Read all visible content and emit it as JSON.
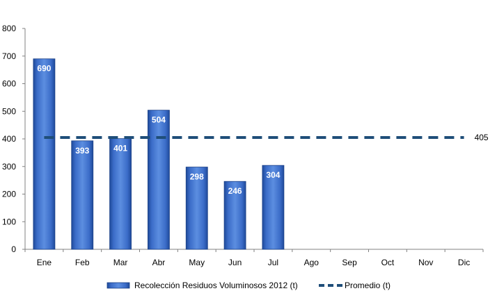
{
  "chart_data": {
    "type": "bar",
    "categories": [
      "Ene",
      "Feb",
      "Mar",
      "Abr",
      "May",
      "Jun",
      "Jul",
      "Ago",
      "Sep",
      "Oct",
      "Nov",
      "Dic"
    ],
    "series": [
      {
        "name": "Recolección Residuos Voluminosos 2012 (t)",
        "type": "bar",
        "values": [
          690,
          393,
          401,
          504,
          298,
          246,
          304,
          null,
          null,
          null,
          null,
          null
        ],
        "data_labels": [
          "690",
          "393",
          "401",
          "504",
          "298",
          "246",
          "304"
        ]
      },
      {
        "name": "Promedio (t)",
        "type": "line",
        "style": "dashed",
        "values": [
          405,
          405,
          405,
          405,
          405,
          405,
          405,
          405,
          405,
          405,
          405,
          405
        ],
        "end_label": "405"
      }
    ],
    "yticks": [
      "0",
      "100",
      "200",
      "300",
      "400",
      "500",
      "600",
      "700",
      "800"
    ],
    "ylim": [
      0,
      800
    ],
    "title": "",
    "xlabel": "",
    "ylabel": "",
    "grid": false,
    "legend_position": "bottom",
    "colors": {
      "bar_fill": "#3b6cc8",
      "bar_fill_dark": "#1f4a9a",
      "bar_fill_light": "#5c8ee0",
      "bar_edge": "#1a3f86",
      "average_line": "#1f4e79",
      "axis": "#808080"
    }
  }
}
